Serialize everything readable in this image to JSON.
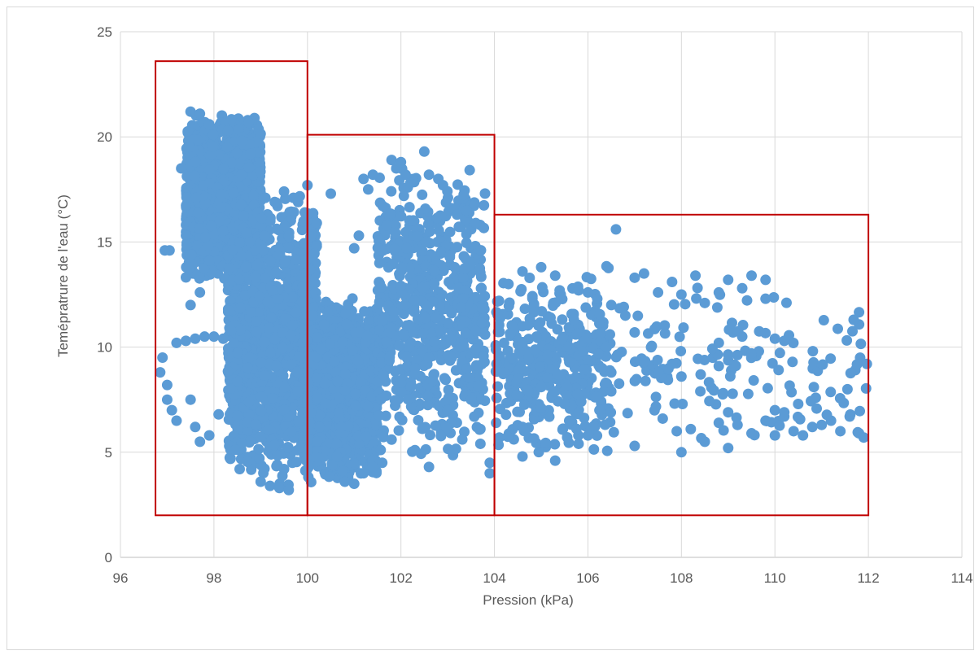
{
  "chart_data": {
    "type": "scatter",
    "title": "",
    "xlabel": "Pression (kPa)",
    "ylabel": "Temépratrure de l'eau (°C)",
    "xlim": [
      96,
      114
    ],
    "ylim": [
      0,
      25
    ],
    "xticks": [
      96,
      98,
      100,
      102,
      104,
      106,
      108,
      110,
      112,
      114
    ],
    "yticks": [
      0,
      5,
      10,
      15,
      20,
      25
    ],
    "grid": true,
    "legend": "none",
    "marker_color": "#5b9bd5",
    "box_color": "#c00000",
    "annotation_boxes": [
      {
        "x0": 96.75,
        "x1": 100.0,
        "y0": 2.0,
        "y1": 23.6
      },
      {
        "x0": 100.0,
        "x1": 104.0,
        "y0": 2.0,
        "y1": 20.1
      },
      {
        "x0": 104.0,
        "x1": 112.0,
        "y0": 2.0,
        "y1": 16.3
      }
    ],
    "clusters": [
      {
        "x_range": [
          97.4,
          99.0
        ],
        "y_range": [
          13.0,
          21.2
        ],
        "density": "very high"
      },
      {
        "x_range": [
          98.3,
          100.2
        ],
        "y_range": [
          3.2,
          17.5
        ],
        "density": "very high"
      },
      {
        "x_range": [
          100.0,
          101.5
        ],
        "y_range": [
          3.5,
          12.5
        ],
        "density": "very high"
      },
      {
        "x_range": [
          101.5,
          103.8
        ],
        "y_range": [
          4.5,
          18.8
        ],
        "density": "high"
      },
      {
        "x_range": [
          104.0,
          106.5
        ],
        "y_range": [
          4.5,
          13.9
        ],
        "density": "medium"
      },
      {
        "x_range": [
          106.5,
          112.0
        ],
        "y_range": [
          5.0,
          13.5
        ],
        "density": "low"
      }
    ],
    "points": [
      [
        96.95,
        14.6
      ],
      [
        97.05,
        14.6
      ],
      [
        96.9,
        9.5
      ],
      [
        96.85,
        8.8
      ],
      [
        97.0,
        8.2
      ],
      [
        97.0,
        7.5
      ],
      [
        97.1,
        7.0
      ],
      [
        97.2,
        6.5
      ],
      [
        97.2,
        10.2
      ],
      [
        97.4,
        10.3
      ],
      [
        97.6,
        10.4
      ],
      [
        97.8,
        10.5
      ],
      [
        98.0,
        10.5
      ],
      [
        98.2,
        10.4
      ],
      [
        97.3,
        18.5
      ],
      [
        97.5,
        21.2
      ],
      [
        97.7,
        21.1
      ],
      [
        97.9,
        20.6
      ],
      [
        98.3,
        20.3
      ],
      [
        98.6,
        19.8
      ],
      [
        97.5,
        7.5
      ],
      [
        97.6,
        6.2
      ],
      [
        97.7,
        5.5
      ],
      [
        97.9,
        5.8
      ],
      [
        98.1,
        6.8
      ],
      [
        97.5,
        12.0
      ],
      [
        97.7,
        12.6
      ],
      [
        99.1,
        17.1
      ],
      [
        99.3,
        16.9
      ],
      [
        99.5,
        17.4
      ],
      [
        99.7,
        17.1
      ],
      [
        99.8,
        16.9
      ],
      [
        99.6,
        15.3
      ],
      [
        99.0,
        3.6
      ],
      [
        99.2,
        3.4
      ],
      [
        99.4,
        3.3
      ],
      [
        99.6,
        3.2
      ],
      [
        99.5,
        4.2
      ],
      [
        100.0,
        17.7
      ],
      [
        100.5,
        17.3
      ],
      [
        100.2,
        15.9
      ],
      [
        100.0,
        14.2
      ],
      [
        100.8,
        3.6
      ],
      [
        101.0,
        3.5
      ],
      [
        101.2,
        4.0
      ],
      [
        101.4,
        4.3
      ],
      [
        101.6,
        4.5
      ],
      [
        101.0,
        14.7
      ],
      [
        101.1,
        15.3
      ],
      [
        101.2,
        18.0
      ],
      [
        101.3,
        17.5
      ],
      [
        101.4,
        18.2
      ],
      [
        101.8,
        18.9
      ],
      [
        101.9,
        18.5
      ],
      [
        102.0,
        18.8
      ],
      [
        102.1,
        18.2
      ],
      [
        102.2,
        17.8
      ],
      [
        102.5,
        19.3
      ],
      [
        102.6,
        18.2
      ],
      [
        102.8,
        18.0
      ],
      [
        102.9,
        17.7
      ],
      [
        103.1,
        16.6
      ],
      [
        103.2,
        16.3
      ],
      [
        103.4,
        16.5
      ],
      [
        103.6,
        15.9
      ],
      [
        103.9,
        4.5
      ],
      [
        103.9,
        4.0
      ],
      [
        102.6,
        4.3
      ],
      [
        102.3,
        5.1
      ],
      [
        101.8,
        5.6
      ],
      [
        102.0,
        8.3
      ],
      [
        102.3,
        9.0
      ],
      [
        102.6,
        9.5
      ],
      [
        103.0,
        7.0
      ],
      [
        103.5,
        7.5
      ],
      [
        103.7,
        6.1
      ],
      [
        103.7,
        5.4
      ],
      [
        106.6,
        15.6
      ],
      [
        104.6,
        13.6
      ],
      [
        105.0,
        13.8
      ],
      [
        105.3,
        13.4
      ],
      [
        104.3,
        13.0
      ],
      [
        104.6,
        4.8
      ],
      [
        105.3,
        4.6
      ],
      [
        105.8,
        5.4
      ],
      [
        104.6,
        6.2
      ],
      [
        105.0,
        7.1
      ],
      [
        105.5,
        7.3
      ],
      [
        106.0,
        12.6
      ],
      [
        106.2,
        12.3
      ],
      [
        106.5,
        12.0
      ],
      [
        107.0,
        13.3
      ],
      [
        107.2,
        13.5
      ],
      [
        107.5,
        12.6
      ],
      [
        107.8,
        13.1
      ],
      [
        108.0,
        12.5
      ],
      [
        108.3,
        13.4
      ],
      [
        108.5,
        12.1
      ],
      [
        108.8,
        12.6
      ],
      [
        109.0,
        13.2
      ],
      [
        109.3,
        12.8
      ],
      [
        109.5,
        13.4
      ],
      [
        109.8,
        12.3
      ],
      [
        109.8,
        13.2
      ],
      [
        108.8,
        10.2
      ],
      [
        109.3,
        10.5
      ],
      [
        109.5,
        9.7
      ],
      [
        110.0,
        10.4
      ],
      [
        110.2,
        10.3
      ],
      [
        107.2,
        9.3
      ],
      [
        107.5,
        8.8
      ],
      [
        107.8,
        9.2
      ],
      [
        108.0,
        8.6
      ],
      [
        106.0,
        9.4
      ],
      [
        106.4,
        10.0
      ],
      [
        106.3,
        9.0
      ],
      [
        106.8,
        11.5
      ],
      [
        107.0,
        10.7
      ],
      [
        107.6,
        6.6
      ],
      [
        107.9,
        6.0
      ],
      [
        108.2,
        6.1
      ],
      [
        108.5,
        5.5
      ],
      [
        108.8,
        6.4
      ],
      [
        109.0,
        6.9
      ],
      [
        109.2,
        6.3
      ],
      [
        109.5,
        5.9
      ],
      [
        109.8,
        6.5
      ],
      [
        110.0,
        5.8
      ],
      [
        110.2,
        6.7
      ],
      [
        110.4,
        6.0
      ],
      [
        110.6,
        5.8
      ],
      [
        110.8,
        6.2
      ],
      [
        111.0,
        6.3
      ],
      [
        111.2,
        6.5
      ],
      [
        111.4,
        6.0
      ],
      [
        111.6,
        6.7
      ],
      [
        111.8,
        5.9
      ],
      [
        111.9,
        5.7
      ],
      [
        110.0,
        7.0
      ],
      [
        110.2,
        6.9
      ],
      [
        109.0,
        5.2
      ],
      [
        108.0,
        5.0
      ],
      [
        107.0,
        5.3
      ],
      [
        106.0,
        5.8
      ],
      [
        105.6,
        6.5
      ],
      [
        105.3,
        7.9
      ],
      [
        105.0,
        8.1
      ],
      [
        104.5,
        8.5
      ],
      [
        104.7,
        9.8
      ],
      [
        104.9,
        10.5
      ],
      [
        105.2,
        11.4
      ],
      [
        105.7,
        11.3
      ],
      [
        105.8,
        12.7
      ]
    ]
  }
}
